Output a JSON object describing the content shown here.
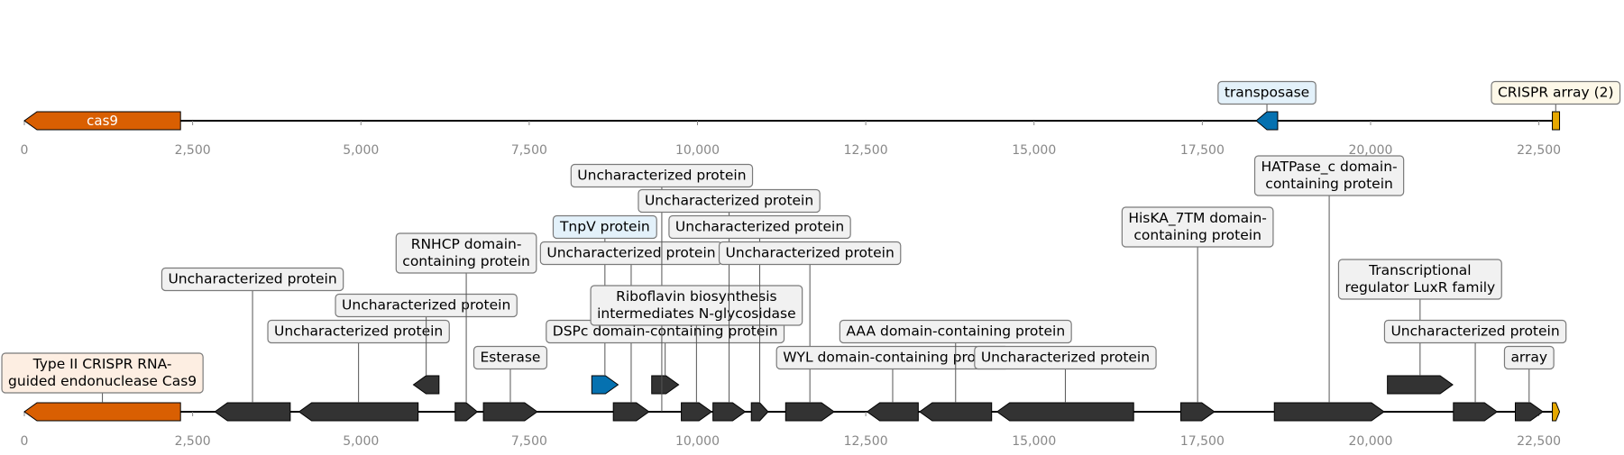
{
  "colors": {
    "cas": "#D95F02",
    "mobile": "#0571B0",
    "array": "#E6A800",
    "other": "#333333",
    "backbone": "#000000",
    "axis_text": "#888888",
    "box_cas": "#FDEEE2",
    "box_mobile": "#E3F1FA",
    "box_array": "#FDF8E8",
    "box_other": "#F1F1F1"
  },
  "axis": {
    "min": 0,
    "max": 22800,
    "ticks": [
      "0",
      "2,500",
      "5,000",
      "7,500",
      "10,000",
      "12,500",
      "15,000",
      "17,500",
      "20,000",
      "22,500"
    ],
    "tick_values": [
      0,
      2500,
      5000,
      7500,
      10000,
      12500,
      15000,
      17500,
      20000,
      22500
    ]
  },
  "tracks": [
    {
      "id": "overview",
      "features": [
        {
          "start": 0,
          "end": 2320,
          "strand": -1,
          "kind": "cas",
          "inner_label": "cas9"
        },
        {
          "start": 18300,
          "end": 18620,
          "strand": -1,
          "kind": "mobile",
          "label": "transposase",
          "level": 1
        },
        {
          "start": 22700,
          "end": 22800,
          "strand": 0,
          "kind": "array",
          "label": "CRISPR array (2)",
          "level": 1
        }
      ]
    },
    {
      "id": "detail",
      "features": [
        {
          "start": 0,
          "end": 2320,
          "strand": -1,
          "kind": "cas",
          "label": "Type II CRISPR RNA-\nguided endonuclease Cas9",
          "level": 1
        },
        {
          "start": 2830,
          "end": 3950,
          "strand": -1,
          "kind": "other",
          "label": "Uncharacterized protein",
          "level": 5
        },
        {
          "start": 4080,
          "end": 5850,
          "strand": -1,
          "kind": "other",
          "label": "Uncharacterized protein",
          "level": 3
        },
        {
          "start": 5780,
          "end": 6160,
          "strand": -1,
          "kind": "other",
          "raised": true,
          "label": "Uncharacterized protein",
          "level": 4
        },
        {
          "start": 6400,
          "end": 6730,
          "strand": 1,
          "kind": "other",
          "label": "RNHCP domain-\ncontaining protein",
          "level": 6
        },
        {
          "start": 6820,
          "end": 7620,
          "strand": 1,
          "kind": "other",
          "label": "Esterase",
          "level": 2
        },
        {
          "start": 8430,
          "end": 8820,
          "strand": 1,
          "kind": "mobile",
          "raised": true,
          "label": "TnpV protein",
          "level": 7
        },
        {
          "start": 8750,
          "end": 9280,
          "strand": 1,
          "kind": "other",
          "label": "Uncharacterized protein",
          "level": 6
        },
        {
          "start": 9320,
          "end": 9720,
          "strand": 1,
          "kind": "other",
          "raised": true,
          "label": "DSPc domain-containing protein",
          "level": 3
        },
        {
          "start": 9460,
          "end": 9480,
          "strand": 0,
          "kind": "anchor",
          "label": "Uncharacterized protein",
          "level": 9
        },
        {
          "start": 9760,
          "end": 10210,
          "strand": 1,
          "kind": "other",
          "label": "Riboflavin biosynthesis\nintermediates N-glycosidase",
          "level": 4
        },
        {
          "start": 10230,
          "end": 10710,
          "strand": 1,
          "kind": "other",
          "label": "Uncharacterized protein",
          "level": 8
        },
        {
          "start": 10800,
          "end": 11050,
          "strand": 1,
          "kind": "other",
          "label": "Uncharacterized protein",
          "level": 7
        },
        {
          "start": 11310,
          "end": 12030,
          "strand": 1,
          "kind": "other",
          "label": "Uncharacterized protein",
          "level": 6
        },
        {
          "start": 12520,
          "end": 13280,
          "strand": -1,
          "kind": "other",
          "label": "WYL domain-containing protein",
          "level": 2
        },
        {
          "start": 13300,
          "end": 14370,
          "strand": -1,
          "kind": "other",
          "label": "AAA domain-containing protein",
          "level": 3
        },
        {
          "start": 14450,
          "end": 16480,
          "strand": -1,
          "kind": "other",
          "label": "Uncharacterized protein",
          "level": 2
        },
        {
          "start": 17180,
          "end": 17680,
          "strand": 1,
          "kind": "other",
          "label": "HisKA_7TM domain-\ncontaining protein",
          "level": 7
        },
        {
          "start": 18570,
          "end": 20200,
          "strand": 1,
          "kind": "other",
          "label": "HATPase_c domain-\ncontaining protein",
          "level": 9
        },
        {
          "start": 20250,
          "end": 21220,
          "strand": 1,
          "kind": "other",
          "raised": true,
          "label": "Transcriptional\nregulator LuxR family",
          "level": 5
        },
        {
          "start": 21230,
          "end": 21880,
          "strand": 1,
          "kind": "other",
          "label": "Uncharacterized protein",
          "level": 3
        },
        {
          "start": 22150,
          "end": 22560,
          "strand": 1,
          "kind": "other",
          "label": "array",
          "level": 2
        },
        {
          "start": 22700,
          "end": 22800,
          "strand": 1,
          "kind": "array"
        }
      ]
    }
  ]
}
